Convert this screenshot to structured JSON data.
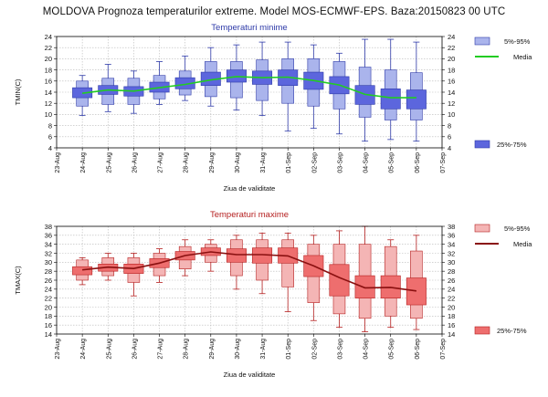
{
  "title": "MOLDOVA  Prognoza temperaturilor extreme.  Model MOS-ECMWF-EPS. Baza:20150823 00 UTC",
  "chart_data": [
    {
      "type": "boxplot",
      "title": "Temperaturi minime",
      "ylabel": "TMIN(C)",
      "xlabel": "Ziua de validitate",
      "ylim": [
        4,
        24
      ],
      "yticks": [
        4,
        6,
        8,
        10,
        12,
        14,
        16,
        18,
        20,
        22,
        24
      ],
      "xtick_labels": [
        "23-Aug",
        "24-Aug",
        "25-Aug",
        "26-Aug",
        "27-Aug",
        "28-Aug",
        "29-Aug",
        "30-Aug",
        "31-Aug",
        "01-Sep",
        "02-Sep",
        "03-Sep",
        "04-Sep",
        "05-Sep",
        "06-Sep",
        "07-Sep"
      ],
      "grid": true,
      "legend": {
        "outer": "5%-95%",
        "median": "Media",
        "inner": "25%-75%"
      },
      "colors": {
        "outer": "#aab4ec",
        "inner": "#5c66dd",
        "edge": "#2e3aa8",
        "median_line": "#22cc22"
      },
      "categories": [
        "24-Aug",
        "25-Aug",
        "26-Aug",
        "27-Aug",
        "28-Aug",
        "29-Aug",
        "30-Aug",
        "31-Aug",
        "01-Sep",
        "02-Sep",
        "03-Sep",
        "04-Sep",
        "05-Sep",
        "06-Sep"
      ],
      "min": [
        9.8,
        10.5,
        10.2,
        11.8,
        12.5,
        11.5,
        10.8,
        9.8,
        7.0,
        7.5,
        6.5,
        5.2,
        5.5,
        5.2
      ],
      "p5": [
        11.5,
        11.8,
        11.8,
        12.8,
        13.5,
        13.2,
        13.0,
        12.5,
        12.0,
        11.5,
        11.0,
        9.5,
        9.0,
        9.0
      ],
      "p25": [
        13.0,
        13.6,
        13.3,
        14.0,
        14.6,
        15.2,
        15.8,
        15.4,
        15.2,
        14.5,
        13.7,
        11.8,
        11.0,
        11.0
      ],
      "p75": [
        14.8,
        15.2,
        15.0,
        15.8,
        16.6,
        17.6,
        18.0,
        17.8,
        18.0,
        17.6,
        16.8,
        15.2,
        14.6,
        14.4
      ],
      "p95": [
        16.0,
        16.5,
        16.5,
        17.0,
        17.8,
        19.5,
        19.5,
        19.8,
        20.0,
        20.0,
        19.5,
        18.5,
        18.0,
        17.5
      ],
      "max": [
        17.0,
        19.0,
        17.8,
        19.5,
        20.5,
        22.0,
        22.5,
        23.0,
        23.0,
        22.5,
        21.0,
        23.5,
        23.5,
        23.0
      ],
      "mean": [
        13.8,
        14.4,
        14.2,
        14.8,
        15.4,
        16.2,
        16.8,
        16.6,
        16.7,
        16.1,
        15.3,
        13.6,
        13.0,
        13.0
      ]
    },
    {
      "type": "boxplot",
      "title": "Temperaturi maxime",
      "ylabel": "TMAX(C)",
      "xlabel": "Ziua de validitate",
      "ylim": [
        14,
        38
      ],
      "yticks": [
        14,
        16,
        18,
        20,
        22,
        24,
        26,
        28,
        30,
        32,
        34,
        36,
        38
      ],
      "xtick_labels": [
        "23-Aug",
        "24-Aug",
        "25-Aug",
        "26-Aug",
        "27-Aug",
        "28-Aug",
        "29-Aug",
        "30-Aug",
        "31-Aug",
        "01-Sep",
        "02-Sep",
        "03-Sep",
        "04-Sep",
        "05-Sep",
        "06-Sep",
        "07-Sep"
      ],
      "grid": true,
      "legend": {
        "outer": "5%-95%",
        "median": "Media",
        "inner": "25%-75%"
      },
      "colors": {
        "outer": "#f4b5b5",
        "inner": "#ee6e6e",
        "edge": "#b52020",
        "median_line": "#8a1010"
      },
      "categories": [
        "24-Aug",
        "25-Aug",
        "26-Aug",
        "27-Aug",
        "28-Aug",
        "29-Aug",
        "30-Aug",
        "31-Aug",
        "01-Sep",
        "02-Sep",
        "03-Sep",
        "04-Sep",
        "05-Sep",
        "06-Sep"
      ],
      "min": [
        25.0,
        26.0,
        22.5,
        25.5,
        27.0,
        28.0,
        24.0,
        23.0,
        19.0,
        17.0,
        15.5,
        14.5,
        15.5,
        15.0
      ],
      "p5": [
        26.0,
        27.0,
        25.5,
        27.0,
        28.5,
        30.0,
        27.0,
        26.0,
        24.5,
        21.0,
        18.5,
        17.5,
        18.0,
        17.5
      ],
      "p25": [
        27.2,
        28.0,
        27.5,
        28.8,
        30.5,
        31.5,
        30.0,
        29.8,
        29.8,
        26.8,
        22.5,
        22.0,
        22.0,
        20.5
      ],
      "p75": [
        29.0,
        29.6,
        29.6,
        30.8,
        32.4,
        33.2,
        33.0,
        33.2,
        33.2,
        31.5,
        29.5,
        27.0,
        27.0,
        26.5
      ],
      "p95": [
        30.5,
        31.0,
        31.0,
        32.0,
        33.5,
        34.0,
        35.0,
        35.0,
        35.0,
        34.0,
        34.0,
        34.0,
        33.5,
        32.5
      ],
      "max": [
        31.0,
        32.0,
        32.0,
        33.0,
        35.0,
        35.0,
        36.0,
        36.5,
        36.5,
        36.0,
        37.0,
        38.0,
        35.0,
        36.0
      ],
      "mean": [
        28.3,
        28.9,
        28.6,
        29.8,
        31.5,
        32.3,
        31.7,
        31.7,
        31.4,
        29.2,
        26.6,
        24.3,
        24.4,
        23.6
      ]
    }
  ]
}
